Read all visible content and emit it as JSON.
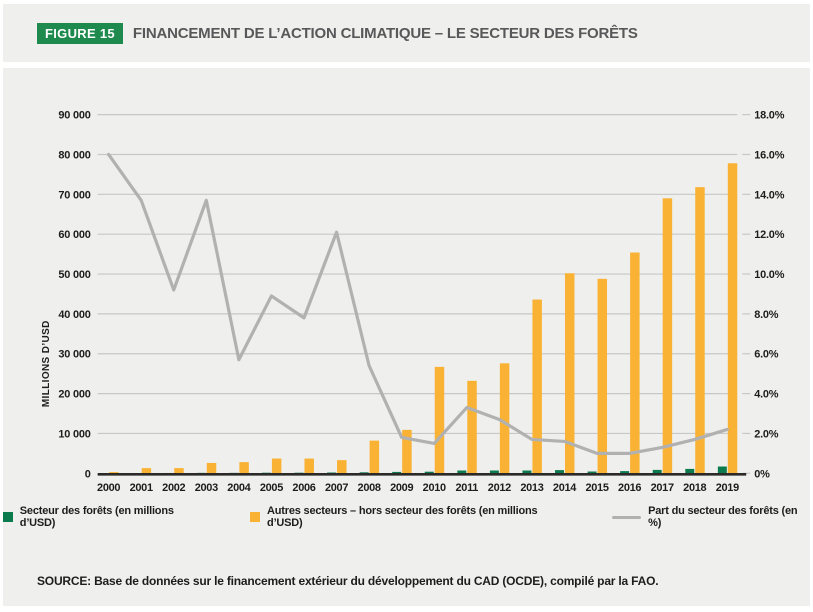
{
  "figure": {
    "badge": "FIGURE 15",
    "title": "FINANCEMENT DE L’ACTION CLIMATIQUE – LE SECTEUR DES FORÊTS"
  },
  "chart_data": {
    "type": "bar+line",
    "categories": [
      "2000",
      "2001",
      "2002",
      "2003",
      "2004",
      "2005",
      "2006",
      "2007",
      "2008",
      "2009",
      "2010",
      "2011",
      "2012",
      "2013",
      "2014",
      "2015",
      "2016",
      "2017",
      "2018",
      "2019"
    ],
    "series": [
      {
        "name": "Secteur des forêts (en millions d’USD)",
        "type": "bar",
        "axis": "left",
        "color": "#0b7a4c",
        "values": [
          60,
          70,
          80,
          110,
          110,
          150,
          150,
          200,
          250,
          350,
          400,
          700,
          700,
          700,
          800,
          450,
          550,
          850,
          1100,
          1700
        ]
      },
      {
        "name": "Autres secteurs – hors secteur des forêts (en millions d’USD)",
        "type": "bar",
        "axis": "left",
        "color": "#f9b233",
        "values": [
          300,
          1300,
          1300,
          2600,
          2800,
          3700,
          3700,
          3300,
          8200,
          10900,
          26700,
          23200,
          27600,
          43600,
          50200,
          48800,
          55400,
          69000,
          71800,
          77800
        ]
      },
      {
        "name": "Part du secteur des forêts (en %)",
        "type": "line",
        "axis": "right",
        "color": "#b1b1b1",
        "values": [
          16.0,
          13.7,
          9.2,
          13.7,
          5.7,
          8.9,
          7.8,
          12.1,
          5.4,
          1.8,
          1.5,
          3.3,
          2.7,
          1.7,
          1.6,
          1.0,
          1.0,
          1.3,
          1.7,
          2.2
        ]
      }
    ],
    "left_axis": {
      "label": "MILLIONS D’USD",
      "min": 0,
      "max": 90000,
      "ticks": [
        "0",
        "10 000",
        "20 000",
        "30 000",
        "40 000",
        "50 000",
        "60 000",
        "70 000",
        "80 000",
        "90 000"
      ]
    },
    "right_axis": {
      "min": 0,
      "max": 18,
      "ticks": [
        "0%",
        "2.0%",
        "4.0%",
        "6.0%",
        "8.0%",
        "10.0%",
        "12.0%",
        "14.0%",
        "16.0%",
        "18.0%"
      ]
    },
    "grid": true,
    "legend_position": "bottom"
  },
  "legend": {
    "items": [
      {
        "swatch": "forest-square",
        "label": "Secteur des forêts (en millions d’USD)"
      },
      {
        "swatch": "other-square",
        "label": "Autres secteurs – hors secteur des forêts (en millions d’USD)"
      },
      {
        "swatch": "share-line",
        "label": "Part du secteur des forêts (en %)"
      }
    ]
  },
  "source": "SOURCE: Base de données sur le financement extérieur du développement du CAD (OCDE), compilé par la FAO.",
  "colors": {
    "panel_bg": "#efefed",
    "badge_green": "#1e8a4e",
    "forest_green": "#0b7a4c",
    "other_orange": "#f9b233",
    "share_gray": "#b1b1b1",
    "gridline": "#c7c7c5",
    "axis_line": "#2b2a29",
    "text_dark": "#1d1d1b",
    "title_gray": "#58585a"
  }
}
